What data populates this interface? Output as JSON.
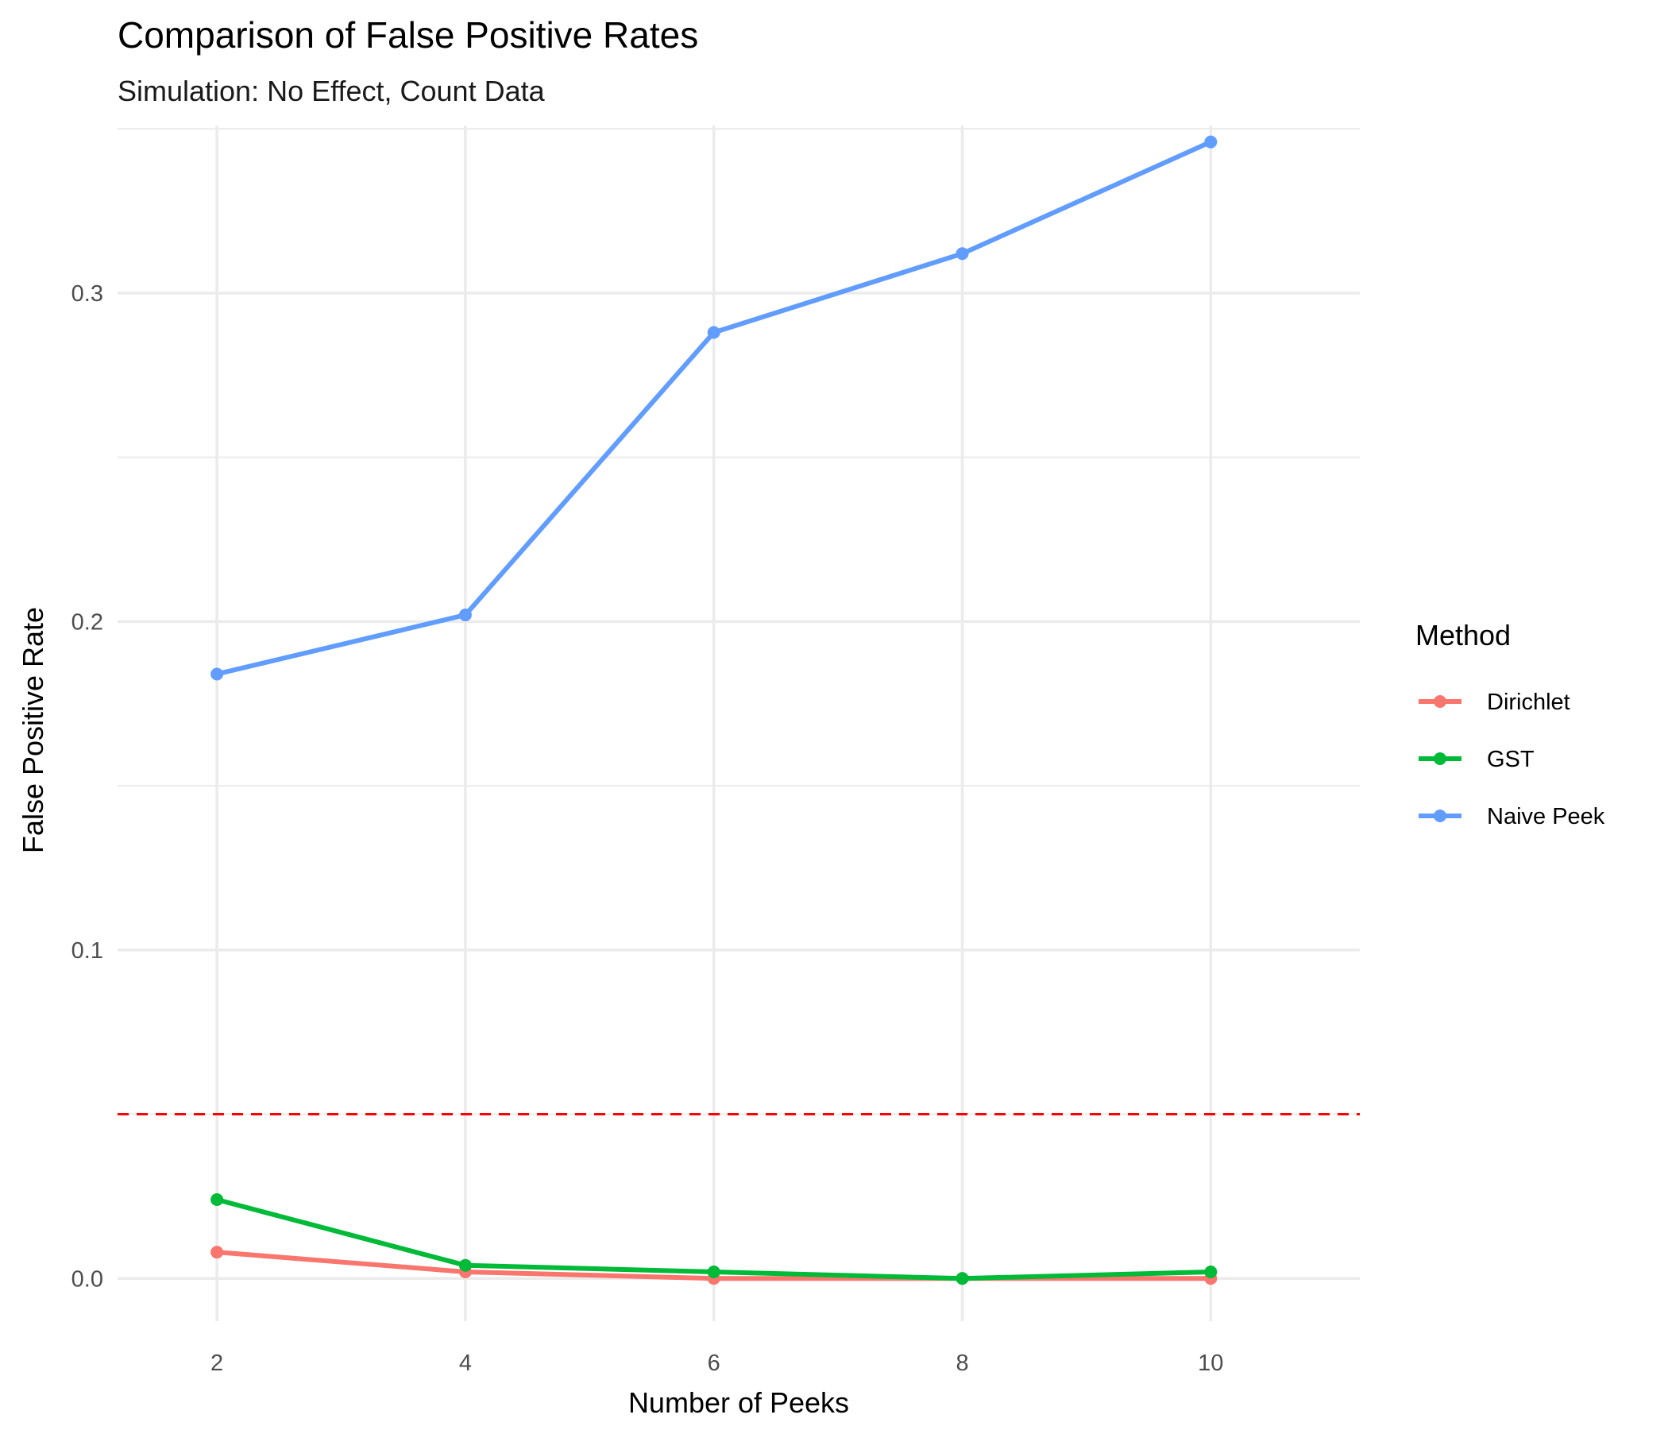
{
  "chart_data": {
    "type": "line",
    "title": "Comparison of False Positive Rates",
    "subtitle": "Simulation: No Effect, Count Data",
    "xlabel": "Number of Peeks",
    "ylabel": "False Positive Rate",
    "x": [
      2,
      4,
      6,
      8,
      10
    ],
    "x_ticks": [
      "2",
      "4",
      "6",
      "8",
      "10"
    ],
    "y_ticks": [
      "0.0",
      "0.1",
      "0.2",
      "0.3"
    ],
    "y_tick_values": [
      0,
      0.1,
      0.2,
      0.3
    ],
    "xlim": [
      1.2,
      11.2
    ],
    "ylim": [
      -0.013,
      0.351
    ],
    "grid": true,
    "legend": {
      "title": "Method",
      "placement": "right"
    },
    "series": [
      {
        "name": "Dirichlet",
        "color": "#F8766D",
        "values": [
          0.008,
          0.002,
          0.0,
          0.0,
          0.0
        ]
      },
      {
        "name": "GST",
        "color": "#00BA38",
        "values": [
          0.024,
          0.004,
          0.002,
          0.0,
          0.002
        ]
      },
      {
        "name": "Naive Peek",
        "color": "#619CFF",
        "values": [
          0.184,
          0.202,
          0.288,
          0.312,
          0.346
        ]
      }
    ],
    "reference_line": {
      "y": 0.05,
      "color": "#FF0000",
      "style": "dashed"
    }
  }
}
